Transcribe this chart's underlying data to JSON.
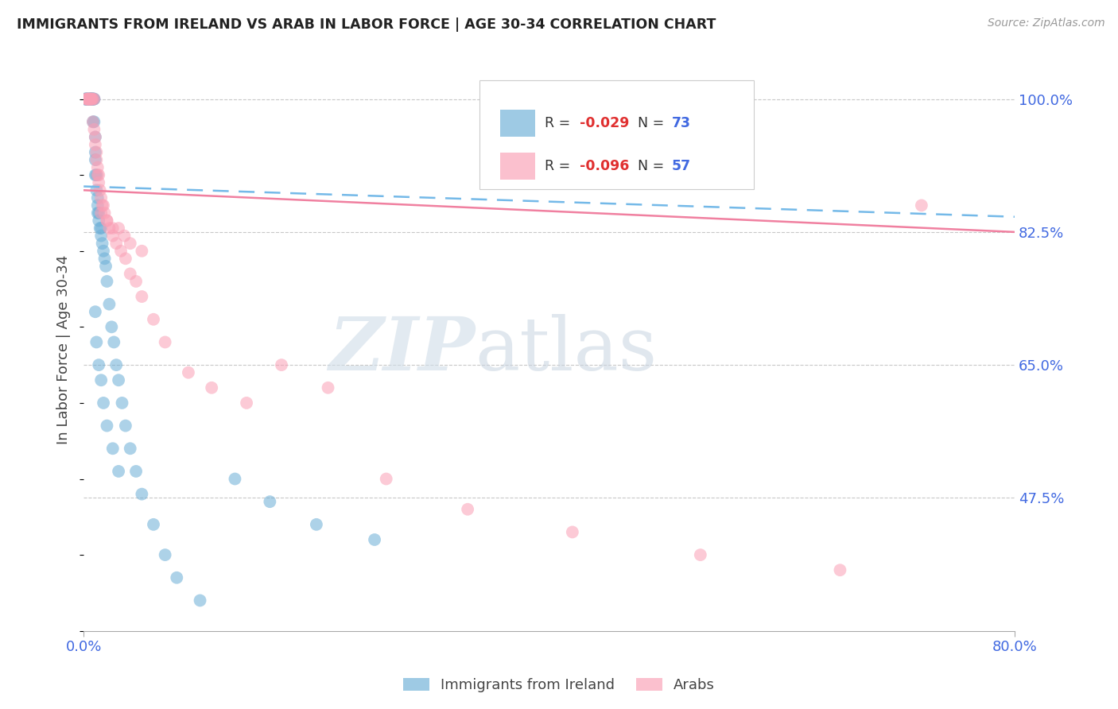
{
  "title": "IMMIGRANTS FROM IRELAND VS ARAB IN LABOR FORCE | AGE 30-34 CORRELATION CHART",
  "source": "Source: ZipAtlas.com",
  "ylabel": "In Labor Force | Age 30-34",
  "x_min": 0.0,
  "x_max": 0.8,
  "y_min": 0.3,
  "y_max": 1.04,
  "y_ticks": [
    0.475,
    0.65,
    0.825,
    1.0
  ],
  "y_tick_labels": [
    "47.5%",
    "65.0%",
    "82.5%",
    "100.0%"
  ],
  "x_tick_labels": [
    "0.0%",
    "80.0%"
  ],
  "watermark_zip": "ZIP",
  "watermark_atlas": "atlas",
  "color_ireland": "#6baed6",
  "color_arab": "#fa9fb5",
  "color_ireland_trend": "#74b9e8",
  "color_arab_trend": "#f080a0",
  "color_axis_labels": "#4169E1",
  "background": "#ffffff",
  "grid_color": "#c8c8c8",
  "ireland_x": [
    0.001,
    0.002,
    0.002,
    0.002,
    0.003,
    0.003,
    0.003,
    0.004,
    0.004,
    0.005,
    0.005,
    0.005,
    0.006,
    0.006,
    0.006,
    0.006,
    0.007,
    0.007,
    0.007,
    0.007,
    0.007,
    0.008,
    0.008,
    0.008,
    0.008,
    0.009,
    0.009,
    0.009,
    0.01,
    0.01,
    0.01,
    0.01,
    0.011,
    0.011,
    0.012,
    0.012,
    0.012,
    0.013,
    0.013,
    0.014,
    0.015,
    0.015,
    0.016,
    0.017,
    0.018,
    0.019,
    0.02,
    0.022,
    0.024,
    0.026,
    0.028,
    0.03,
    0.033,
    0.036,
    0.04,
    0.045,
    0.05,
    0.06,
    0.07,
    0.08,
    0.1,
    0.13,
    0.16,
    0.2,
    0.25,
    0.01,
    0.011,
    0.013,
    0.015,
    0.017,
    0.02,
    0.025,
    0.03
  ],
  "ireland_y": [
    1.0,
    1.0,
    1.0,
    1.0,
    1.0,
    1.0,
    1.0,
    1.0,
    1.0,
    1.0,
    1.0,
    1.0,
    1.0,
    1.0,
    1.0,
    1.0,
    1.0,
    1.0,
    1.0,
    1.0,
    1.0,
    1.0,
    1.0,
    1.0,
    0.97,
    1.0,
    1.0,
    0.97,
    0.95,
    0.93,
    0.92,
    0.9,
    0.9,
    0.88,
    0.87,
    0.86,
    0.85,
    0.85,
    0.84,
    0.83,
    0.83,
    0.82,
    0.81,
    0.8,
    0.79,
    0.78,
    0.76,
    0.73,
    0.7,
    0.68,
    0.65,
    0.63,
    0.6,
    0.57,
    0.54,
    0.51,
    0.48,
    0.44,
    0.4,
    0.37,
    0.34,
    0.5,
    0.47,
    0.44,
    0.42,
    0.72,
    0.68,
    0.65,
    0.63,
    0.6,
    0.57,
    0.54,
    0.51
  ],
  "arab_x": [
    0.002,
    0.003,
    0.003,
    0.004,
    0.004,
    0.005,
    0.005,
    0.006,
    0.006,
    0.007,
    0.007,
    0.008,
    0.008,
    0.009,
    0.009,
    0.01,
    0.01,
    0.011,
    0.011,
    0.012,
    0.012,
    0.013,
    0.013,
    0.014,
    0.015,
    0.016,
    0.017,
    0.018,
    0.02,
    0.022,
    0.025,
    0.028,
    0.032,
    0.036,
    0.04,
    0.045,
    0.05,
    0.06,
    0.07,
    0.09,
    0.11,
    0.14,
    0.17,
    0.21,
    0.26,
    0.33,
    0.42,
    0.53,
    0.65,
    0.72,
    0.015,
    0.02,
    0.025,
    0.03,
    0.035,
    0.04,
    0.05
  ],
  "arab_y": [
    1.0,
    1.0,
    1.0,
    1.0,
    1.0,
    1.0,
    1.0,
    1.0,
    1.0,
    1.0,
    1.0,
    1.0,
    0.97,
    1.0,
    0.96,
    0.95,
    0.94,
    0.93,
    0.92,
    0.91,
    0.9,
    0.9,
    0.89,
    0.88,
    0.87,
    0.86,
    0.86,
    0.85,
    0.84,
    0.83,
    0.82,
    0.81,
    0.8,
    0.79,
    0.77,
    0.76,
    0.74,
    0.71,
    0.68,
    0.64,
    0.62,
    0.6,
    0.65,
    0.62,
    0.5,
    0.46,
    0.43,
    0.4,
    0.38,
    0.86,
    0.85,
    0.84,
    0.83,
    0.83,
    0.82,
    0.81,
    0.8
  ],
  "ireland_trend_x0": 0.0,
  "ireland_trend_x1": 0.8,
  "ireland_trend_y0": 0.885,
  "ireland_trend_y1": 0.845,
  "arab_trend_x0": 0.0,
  "arab_trend_x1": 0.8,
  "arab_trend_y0": 0.88,
  "arab_trend_y1": 0.825
}
